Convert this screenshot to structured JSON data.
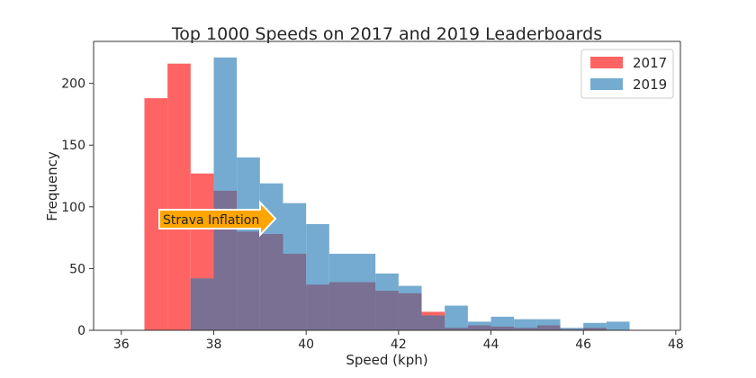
{
  "chart_data": {
    "type": "histogram",
    "title": "Top 1000 Speeds on 2017 and 2019 Leaderboards",
    "xlabel": "Speed (kph)",
    "ylabel": "Frequency",
    "xlim": [
      35.4,
      48.1
    ],
    "ylim": [
      0,
      234
    ],
    "xticks": [
      "36",
      "38",
      "40",
      "42",
      "44",
      "46",
      "48"
    ],
    "yticks": [
      "0",
      "50",
      "100",
      "150",
      "200"
    ],
    "bin_width": 0.5,
    "grid": false,
    "legend": "top-right",
    "series": [
      {
        "name": "2017",
        "color": "#fe6464",
        "bin_starts": [
          36.5,
          37.0,
          37.5,
          38.0,
          38.5,
          39.0,
          39.5,
          40.0,
          40.5,
          41.0,
          41.5,
          42.0,
          42.5,
          43.0,
          43.5,
          44.0,
          44.5,
          45.0,
          45.5,
          46.0
        ],
        "values": [
          188,
          216,
          127,
          113,
          80,
          78,
          62,
          37,
          39,
          39,
          32,
          30,
          15,
          2,
          4,
          3,
          2,
          4,
          1,
          2
        ]
      },
      {
        "name": "2019",
        "color": "#75abd0",
        "bin_starts": [
          37.5,
          38.0,
          38.5,
          39.0,
          39.5,
          40.0,
          40.5,
          41.0,
          41.5,
          42.0,
          42.5,
          43.0,
          43.5,
          44.0,
          44.5,
          45.0,
          45.5,
          46.0,
          46.5
        ],
        "values": [
          42,
          221,
          140,
          119,
          103,
          86,
          62,
          62,
          46,
          36,
          12,
          20,
          7,
          11,
          9,
          9,
          2,
          6,
          7
        ]
      }
    ],
    "overlap_color": "#7a7093",
    "annotation": {
      "text": "Strava Inflation",
      "color": "#ffa500"
    }
  }
}
